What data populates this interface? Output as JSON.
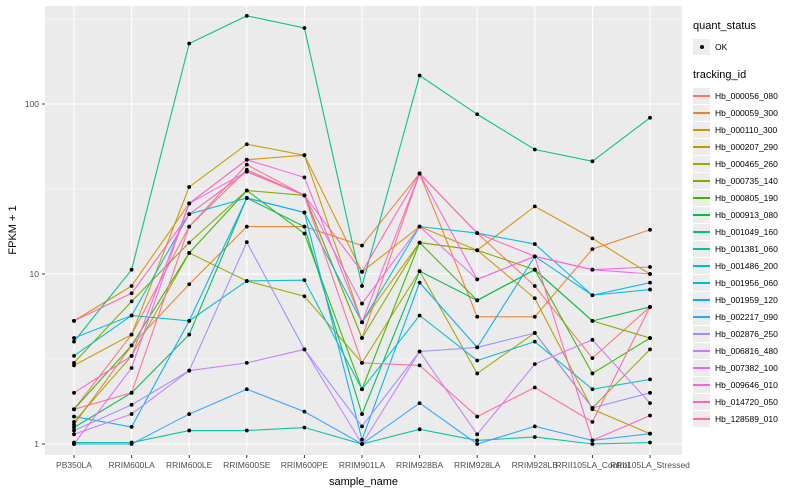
{
  "axes": {
    "x_title": "sample_name",
    "y_title": "FPKM + 1"
  },
  "legend": {
    "quant_status_title": "quant_status",
    "quant_status_items": [
      {
        "label": "OK",
        "marker": "point"
      }
    ],
    "tracking_title": "tracking_id"
  },
  "style": {
    "panel_bg": "#ebebeb",
    "grid_color": "#ffffff",
    "axis_text_color": "#4d4d4d",
    "tick_color": "#333333",
    "point_color": "#000000",
    "legend_key_bg": "#ececec"
  },
  "chart_data": {
    "type": "line",
    "title": "",
    "xlabel": "sample_name",
    "ylabel": "FPKM + 1",
    "y_scale": "log10",
    "y_ticks": [
      1,
      10,
      100
    ],
    "y_minor_breaks": [
      3.162,
      31.623,
      316.228
    ],
    "ylim": [
      0.88,
      380
    ],
    "grid": true,
    "legend_position": "right",
    "point_marker": "black dot (quant_status OK)",
    "categories": [
      "PB350LA",
      "RRIM600LA",
      "RRIM600LE",
      "RRIM600SE",
      "RRIM600PE",
      "RRIM901LA",
      "RRIM928BA",
      "RRIM928LA",
      "RRIM928LB",
      "RRII105LA_Control",
      "RRII105LA_Stressed"
    ],
    "series": [
      {
        "name": "Hb_000056_080",
        "color": "#F8766D",
        "values": [
          1.6,
          4.4,
          19,
          41,
          29,
          4.2,
          39,
          17.4,
          8.5,
          3.2,
          6.4
        ]
      },
      {
        "name": "Hb_000059_300",
        "color": "#EA8331",
        "values": [
          1.3,
          3.8,
          8.7,
          19,
          19,
          14.7,
          39,
          5.6,
          5.6,
          14,
          18.2
        ]
      },
      {
        "name": "Hb_000110_300",
        "color": "#D89000",
        "values": [
          5.3,
          8.5,
          26,
          47,
          50,
          10.3,
          19,
          13.8,
          25,
          16.2,
          10
        ]
      },
      {
        "name": "Hb_000207_290",
        "color": "#C09B00",
        "values": [
          2.9,
          4.4,
          32.5,
          58,
          50,
          5.2,
          15.3,
          13.8,
          7.2,
          1.6,
          1.15
        ]
      },
      {
        "name": "Hb_000465_260",
        "color": "#A3A500",
        "values": [
          1.35,
          3.3,
          13.3,
          9.1,
          7.4,
          3.0,
          10.4,
          2.6,
          4.5,
          1.63,
          3.6
        ]
      },
      {
        "name": "Hb_000735_140",
        "color": "#7CAE00",
        "values": [
          3.0,
          6.9,
          15.3,
          31,
          29,
          4.2,
          15.3,
          13.8,
          10.6,
          5.3,
          4.2
        ]
      },
      {
        "name": "Hb_000805_190",
        "color": "#39B600",
        "values": [
          1.6,
          3.8,
          13.3,
          31,
          17.3,
          2.1,
          15.3,
          7.0,
          10.6,
          2.6,
          4.2
        ]
      },
      {
        "name": "Hb_000913_080",
        "color": "#00BB4E",
        "values": [
          1.25,
          2.0,
          4.4,
          28,
          19,
          1.5,
          10.4,
          7.0,
          10.6,
          5.3,
          6.4
        ]
      },
      {
        "name": "Hb_001049_160",
        "color": "#00C087",
        "values": [
          4.0,
          10.6,
          227,
          330,
          280,
          8.5,
          147,
          87,
          54,
          46,
          83
        ]
      },
      {
        "name": "Hb_001381_060",
        "color": "#00C1A3",
        "values": [
          1.02,
          1.02,
          1.2,
          1.2,
          1.25,
          1.0,
          1.22,
          1.05,
          1.1,
          1.0,
          1.02
        ]
      },
      {
        "name": "Hb_001486_200",
        "color": "#00BFC4",
        "values": [
          3.3,
          5.7,
          5.3,
          9.1,
          9.2,
          2.1,
          5.7,
          3.1,
          4.0,
          2.1,
          2.4
        ]
      },
      {
        "name": "Hb_001956_060",
        "color": "#00BAE0",
        "values": [
          4.2,
          5.7,
          22.5,
          28,
          23,
          5.2,
          19,
          17.4,
          15.0,
          7.5,
          8.1
        ]
      },
      {
        "name": "Hb_001959_120",
        "color": "#00B0F6",
        "values": [
          1.45,
          1.26,
          5.3,
          28,
          23,
          1.06,
          8.9,
          3.7,
          12.7,
          7.5,
          8.9
        ]
      },
      {
        "name": "Hb_002217_090",
        "color": "#35A2FF",
        "values": [
          1.0,
          1.0,
          1.5,
          2.1,
          1.55,
          1.0,
          1.74,
          1.0,
          1.27,
          1.05,
          1.15
        ]
      },
      {
        "name": "Hb_002876_250",
        "color": "#9590FF",
        "values": [
          1.2,
          1.7,
          2.7,
          15.4,
          3.6,
          1.27,
          3.5,
          3.7,
          4.5,
          1.63,
          2.0
        ]
      },
      {
        "name": "Hb_006816_480",
        "color": "#C77CFF",
        "values": [
          1.14,
          1.5,
          2.7,
          3.0,
          3.6,
          1.0,
          3.5,
          1.14,
          2.95,
          4.1,
          1.74
        ]
      },
      {
        "name": "Hb_007382_100",
        "color": "#E76BF3",
        "values": [
          1.0,
          2.8,
          26,
          40,
          29,
          6.7,
          19,
          9.3,
          12.7,
          10.6,
          10.0
        ]
      },
      {
        "name": "Hb_009646_010",
        "color": "#FA62DB",
        "values": [
          2.0,
          3.3,
          26,
          47,
          37,
          5.2,
          39,
          9.3,
          12.7,
          10.6,
          11.0
        ]
      },
      {
        "name": "Hb_014720_050",
        "color": "#FF62BC",
        "values": [
          5.3,
          7.7,
          22.5,
          40,
          29,
          10.3,
          39,
          17.4,
          12.7,
          1.05,
          1.47
        ]
      },
      {
        "name": "Hb_128589_010",
        "color": "#FF6A98",
        "values": [
          1.6,
          2.0,
          19,
          44,
          29,
          3.0,
          2.9,
          1.45,
          2.15,
          1.35,
          6.4
        ]
      }
    ]
  }
}
